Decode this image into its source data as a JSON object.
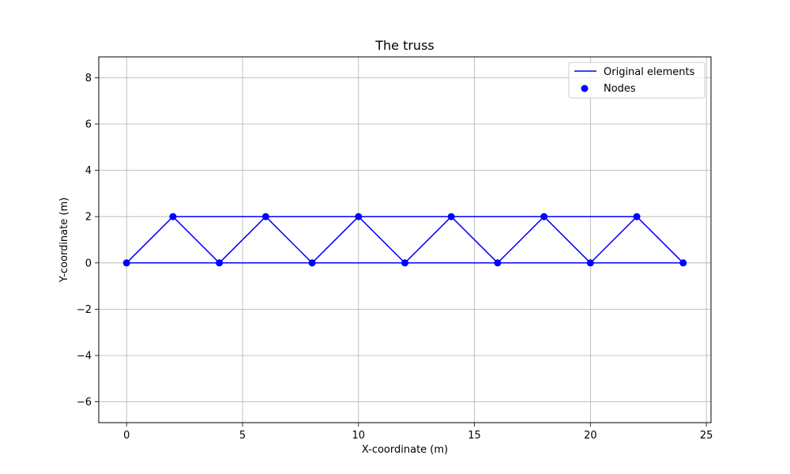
{
  "chart_data": {
    "type": "line",
    "title": "The truss",
    "xlabel": "X-coordinate (m)",
    "ylabel": "Y-coordinate (m)",
    "xlim": [
      -1.2,
      25.2
    ],
    "ylim": [
      -6.9,
      8.9
    ],
    "xticks": [
      0,
      5,
      10,
      15,
      20,
      25
    ],
    "xtick_labels": [
      "0",
      "5",
      "10",
      "15",
      "20",
      "25"
    ],
    "yticks": [
      -6,
      -4,
      -2,
      0,
      2,
      4,
      6,
      8
    ],
    "ytick_labels": [
      "−6",
      "−4",
      "−2",
      "0",
      "2",
      "4",
      "6",
      "8"
    ],
    "grid": true,
    "legend_position": "top-right",
    "legend": {
      "elements_label": "Original elements",
      "nodes_label": "Nodes"
    },
    "color": "#0000ff",
    "series": [
      {
        "name": "Original elements",
        "kind": "line",
        "elements": [
          [
            [
              0,
              0
            ],
            [
              4,
              0
            ]
          ],
          [
            [
              4,
              0
            ],
            [
              8,
              0
            ]
          ],
          [
            [
              8,
              0
            ],
            [
              12,
              0
            ]
          ],
          [
            [
              12,
              0
            ],
            [
              16,
              0
            ]
          ],
          [
            [
              16,
              0
            ],
            [
              20,
              0
            ]
          ],
          [
            [
              20,
              0
            ],
            [
              24,
              0
            ]
          ],
          [
            [
              2,
              2
            ],
            [
              6,
              2
            ]
          ],
          [
            [
              6,
              2
            ],
            [
              10,
              2
            ]
          ],
          [
            [
              10,
              2
            ],
            [
              14,
              2
            ]
          ],
          [
            [
              14,
              2
            ],
            [
              18,
              2
            ]
          ],
          [
            [
              18,
              2
            ],
            [
              22,
              2
            ]
          ],
          [
            [
              0,
              0
            ],
            [
              2,
              2
            ]
          ],
          [
            [
              2,
              2
            ],
            [
              4,
              0
            ]
          ],
          [
            [
              4,
              0
            ],
            [
              6,
              2
            ]
          ],
          [
            [
              6,
              2
            ],
            [
              8,
              0
            ]
          ],
          [
            [
              8,
              0
            ],
            [
              10,
              2
            ]
          ],
          [
            [
              10,
              2
            ],
            [
              12,
              0
            ]
          ],
          [
            [
              12,
              0
            ],
            [
              14,
              2
            ]
          ],
          [
            [
              14,
              2
            ],
            [
              16,
              0
            ]
          ],
          [
            [
              16,
              0
            ],
            [
              18,
              2
            ]
          ],
          [
            [
              18,
              2
            ],
            [
              20,
              0
            ]
          ],
          [
            [
              20,
              0
            ],
            [
              22,
              2
            ]
          ],
          [
            [
              22,
              2
            ],
            [
              24,
              0
            ]
          ]
        ]
      },
      {
        "name": "Nodes",
        "kind": "scatter",
        "points": [
          [
            0,
            0
          ],
          [
            2,
            2
          ],
          [
            4,
            0
          ],
          [
            6,
            2
          ],
          [
            8,
            0
          ],
          [
            10,
            2
          ],
          [
            12,
            0
          ],
          [
            14,
            2
          ],
          [
            16,
            0
          ],
          [
            18,
            2
          ],
          [
            20,
            0
          ],
          [
            22,
            2
          ],
          [
            24,
            0
          ]
        ]
      }
    ]
  }
}
